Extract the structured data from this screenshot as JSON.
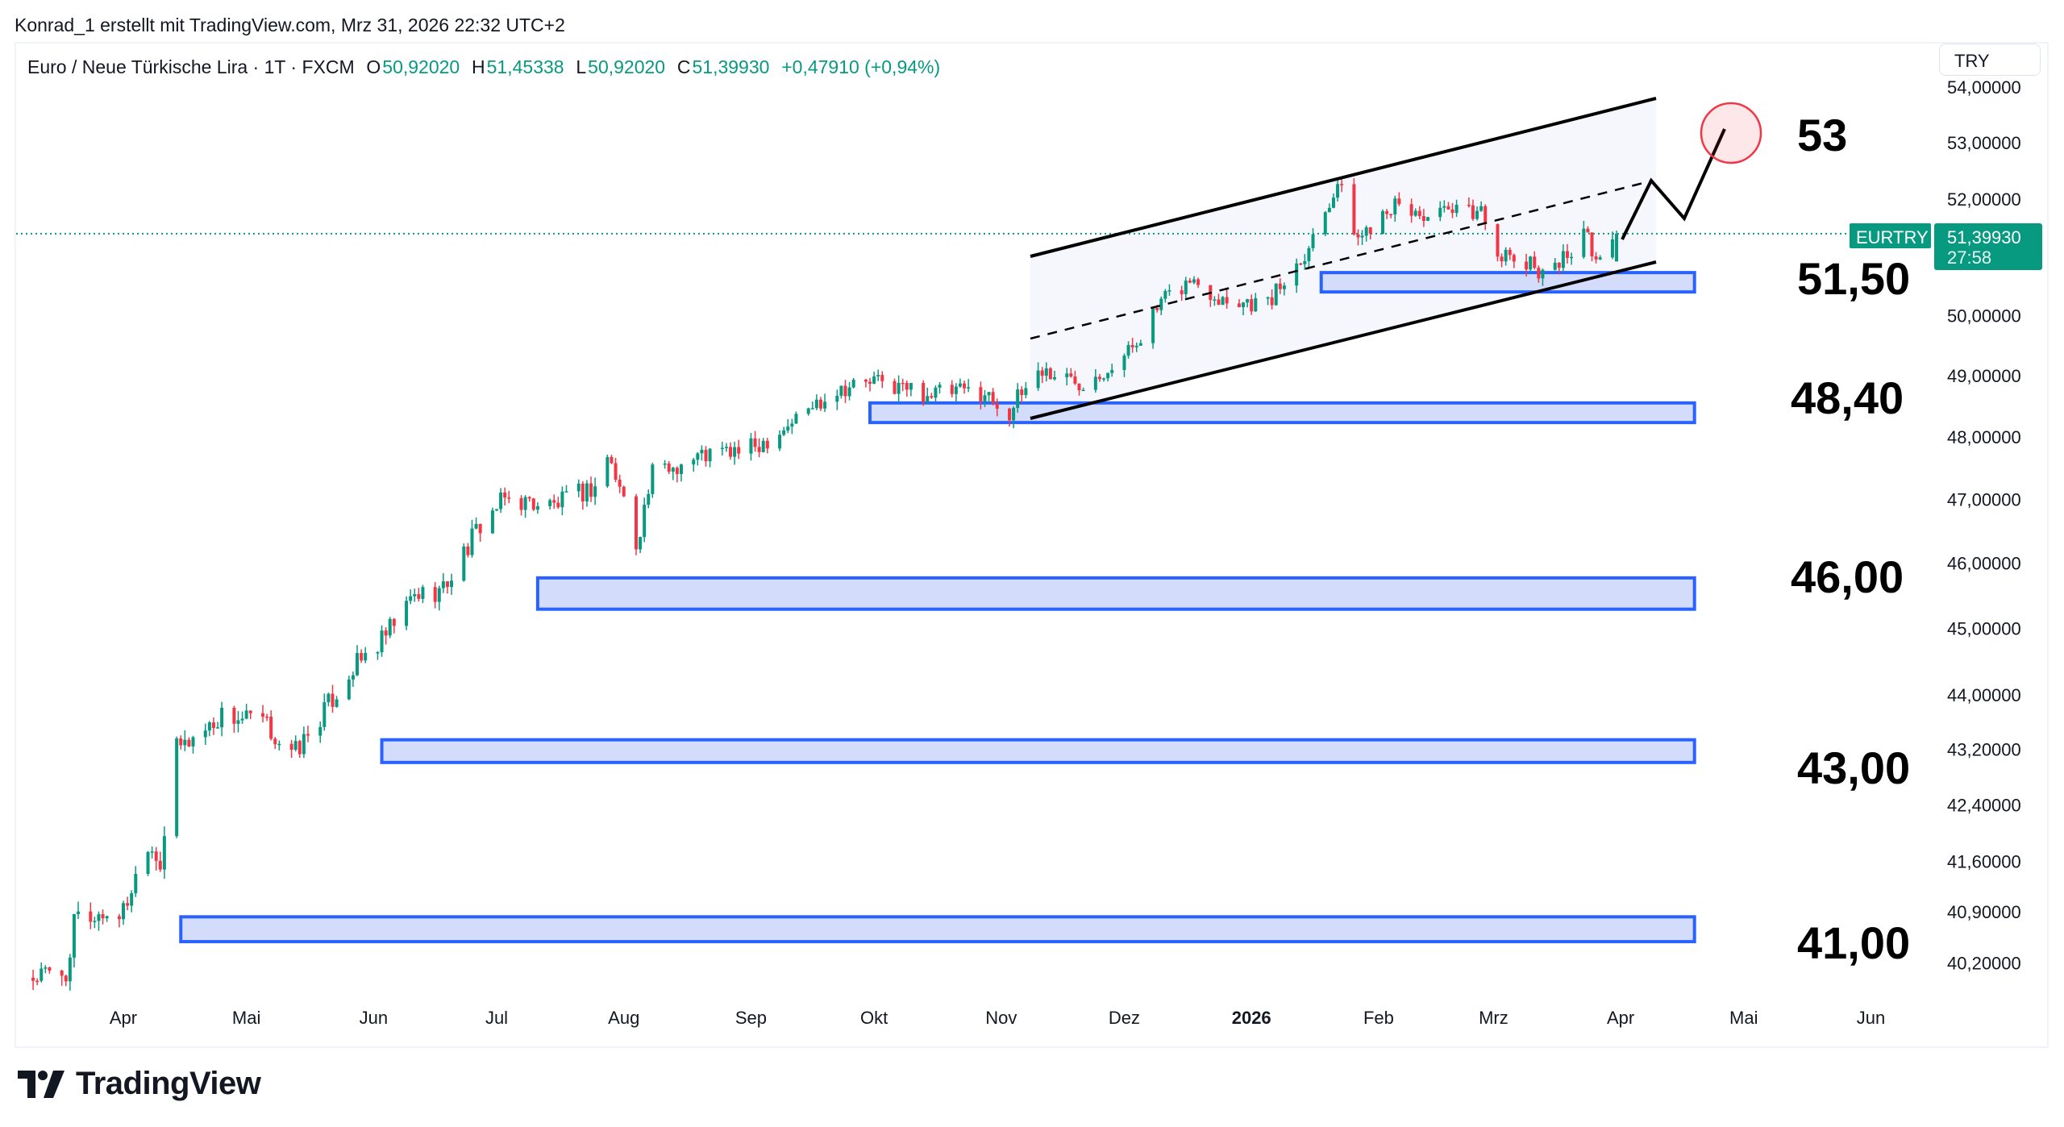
{
  "attribution": "Konrad_1 erstellt mit TradingView.com, Mrz 31, 2026 22:32 UTC+2",
  "legend": {
    "symbol": "Euro  / Neue Türkische Lira · 1T · FXCM",
    "o_label": "O",
    "o": "50,92020",
    "h_label": "H",
    "h": "51,45338",
    "l_label": "L",
    "l": "50,92020",
    "c_label": "C",
    "c": "51,39930",
    "change": "+0,47910 (+0,94%)"
  },
  "currency_button": "TRY",
  "current_price": {
    "ticker": "EURTRY",
    "value": "51,39930",
    "countdown": "27:58",
    "price": 51.3993
  },
  "colors": {
    "up": "#089981",
    "down": "#f23645",
    "box_fill": "#d3dcfb",
    "box_border": "#2962ff",
    "circle": "#f23645"
  },
  "brand": "TradingView",
  "chart_data": {
    "type": "candlestick",
    "title": "Euro / Neue Türkische Lira · 1T · FXCM",
    "scale": "log",
    "ylim": [
      40.0,
      54.2
    ],
    "y_ticks": [
      {
        "v": 54,
        "label": "54,00000"
      },
      {
        "v": 53,
        "label": "53,00000"
      },
      {
        "v": 52,
        "label": "52,00000"
      },
      {
        "v": 50,
        "label": "50,00000"
      },
      {
        "v": 49,
        "label": "49,00000"
      },
      {
        "v": 48,
        "label": "48,00000"
      },
      {
        "v": 47,
        "label": "47,00000"
      },
      {
        "v": 46,
        "label": "46,00000"
      },
      {
        "v": 45,
        "label": "45,00000"
      },
      {
        "v": 44,
        "label": "44,00000"
      },
      {
        "v": 43.2,
        "label": "43,20000"
      },
      {
        "v": 42.4,
        "label": "42,40000"
      },
      {
        "v": 41.6,
        "label": "41,60000"
      },
      {
        "v": 40.9,
        "label": "40,90000"
      },
      {
        "v": 40.2,
        "label": "40,20000"
      }
    ],
    "x_ticks": [
      {
        "d": "2025-04-01",
        "label": "Apr"
      },
      {
        "d": "2025-05-01",
        "label": "Mai"
      },
      {
        "d": "2025-06-01",
        "label": "Jun"
      },
      {
        "d": "2025-07-01",
        "label": "Jul"
      },
      {
        "d": "2025-08-01",
        "label": "Aug"
      },
      {
        "d": "2025-09-01",
        "label": "Sep"
      },
      {
        "d": "2025-10-01",
        "label": "Okt"
      },
      {
        "d": "2025-11-01",
        "label": "Nov"
      },
      {
        "d": "2025-12-01",
        "label": "Dez"
      },
      {
        "d": "2026-01-01",
        "label": "2026",
        "bold": true
      },
      {
        "d": "2026-02-01",
        "label": "Feb"
      },
      {
        "d": "2026-03-01",
        "label": "Mrz"
      },
      {
        "d": "2026-04-01",
        "label": "Apr"
      },
      {
        "d": "2026-05-01",
        "label": "Mai"
      },
      {
        "d": "2026-06-01",
        "label": "Jun"
      }
    ],
    "close_waypoints": [
      [
        "2025-03-10",
        40.0
      ],
      [
        "2025-03-19",
        40.1
      ],
      [
        "2025-03-20",
        40.8
      ],
      [
        "2025-04-01",
        40.9
      ],
      [
        "2025-04-07",
        41.9
      ],
      [
        "2025-04-10",
        41.6
      ],
      [
        "2025-04-14",
        43.2
      ],
      [
        "2025-04-21",
        43.5
      ],
      [
        "2025-04-25",
        43.7
      ],
      [
        "2025-05-05",
        43.6
      ],
      [
        "2025-05-12",
        43.1
      ],
      [
        "2025-05-16",
        43.4
      ],
      [
        "2025-05-27",
        44.4
      ],
      [
        "2025-06-03",
        44.8
      ],
      [
        "2025-06-11",
        45.5
      ],
      [
        "2025-06-18",
        45.6
      ],
      [
        "2025-06-27",
        46.6
      ],
      [
        "2025-07-03",
        47.0
      ],
      [
        "2025-07-15",
        46.9
      ],
      [
        "2025-07-25",
        47.2
      ],
      [
        "2025-07-28",
        47.7
      ],
      [
        "2025-08-01",
        47.0
      ],
      [
        "2025-08-04",
        46.3
      ],
      [
        "2025-08-08",
        47.4
      ],
      [
        "2025-08-20",
        47.7
      ],
      [
        "2025-09-01",
        47.8
      ],
      [
        "2025-09-10",
        48.2
      ],
      [
        "2025-09-22",
        48.8
      ],
      [
        "2025-10-01",
        48.9
      ],
      [
        "2025-10-15",
        48.7
      ],
      [
        "2025-10-27",
        48.75
      ],
      [
        "2025-11-03",
        48.4
      ],
      [
        "2025-11-10",
        49.1
      ],
      [
        "2025-11-20",
        48.9
      ],
      [
        "2025-12-01",
        49.3
      ],
      [
        "2025-12-10",
        50.2
      ],
      [
        "2025-12-17",
        50.6
      ],
      [
        "2025-12-25",
        50.3
      ],
      [
        "2026-01-05",
        50.2
      ],
      [
        "2026-01-15",
        51.2
      ],
      [
        "2026-01-22",
        52.3
      ],
      [
        "2026-01-27",
        51.3
      ],
      [
        "2026-02-03",
        51.9
      ],
      [
        "2026-02-13",
        51.7
      ],
      [
        "2026-02-26",
        51.8
      ],
      [
        "2026-03-03",
        51.0
      ],
      [
        "2026-03-12",
        50.8
      ],
      [
        "2026-03-17",
        50.9
      ],
      [
        "2026-03-23",
        51.4
      ],
      [
        "2026-03-27",
        50.9
      ],
      [
        "2026-03-31",
        51.3993
      ]
    ],
    "last_candle": {
      "o": 50.9202,
      "h": 51.45338,
      "l": 50.9202,
      "c": 51.3993
    },
    "zones": [
      {
        "from": "2026-01-18",
        "to": "2026-04-19",
        "low": 50.4,
        "high": 50.73
      },
      {
        "from": "2025-09-30",
        "to": "2026-04-19",
        "low": 48.23,
        "high": 48.55
      },
      {
        "from": "2025-07-11",
        "to": "2026-04-19",
        "low": 45.29,
        "high": 45.77
      },
      {
        "from": "2025-06-03",
        "to": "2026-04-19",
        "low": 43.01,
        "high": 43.34
      },
      {
        "from": "2025-04-15",
        "to": "2026-04-19",
        "low": 40.49,
        "high": 40.83
      }
    ],
    "annotations": [
      "53",
      "51,50",
      "48,40",
      "46,00",
      "43,00",
      "41,00"
    ]
  }
}
